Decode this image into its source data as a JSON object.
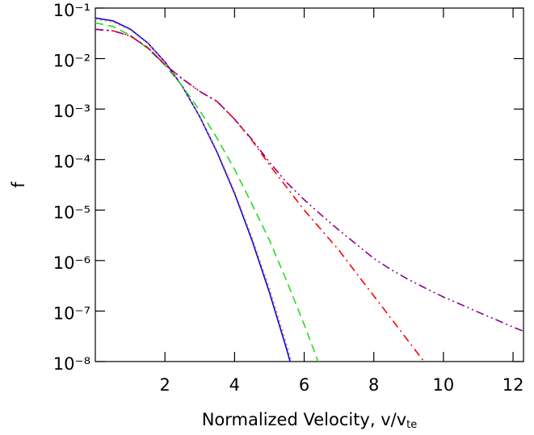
{
  "chart_data": {
    "type": "line",
    "ylabel": "f",
    "xlabel": "Normalized Velocity, v/v",
    "xlabel_sub": "te",
    "x": [
      0,
      0.5,
      1,
      1.5,
      2,
      2.5,
      3,
      3.5,
      4,
      4.5,
      5,
      5.5,
      6,
      6.5,
      7,
      7.5,
      8,
      8.5,
      9,
      9.5,
      10,
      10.5,
      11,
      11.5,
      12,
      12.3
    ],
    "series": [
      {
        "color": "#0000ff",
        "style": "solid",
        "values": [
          0.0635,
          0.056,
          0.0385,
          0.0206,
          0.0086,
          0.0028,
          0.000705,
          0.000138,
          2.13e-05,
          2.53e-06,
          2.36e-07,
          1.72e-08,
          9.7e-10,
          null,
          null,
          null,
          null,
          null,
          null,
          null,
          null,
          null,
          null,
          null,
          null,
          null
        ]
      },
      {
        "color": "#ff8c00",
        "style": "dotted",
        "values": [
          0.06,
          0.0532,
          0.0368,
          0.0199,
          0.00844,
          0.0028,
          0.000728,
          0.000148,
          2.36e-05,
          2.93e-06,
          2.87e-07,
          2.18e-08,
          1.3e-09,
          null,
          null,
          null,
          null,
          null,
          null,
          null,
          null,
          null,
          null,
          null,
          null,
          null
        ]
      },
      {
        "color": "#22dd22",
        "style": "dashed",
        "values": [
          0.051,
          0.0434,
          0.0291,
          0.016,
          0.00735,
          0.00284,
          0.000935,
          0.000263,
          6.4e-05,
          1.31e-05,
          2.54e-06,
          3.9e-07,
          5.4e-08,
          6.6e-09,
          null,
          null,
          null,
          null,
          null,
          null,
          null,
          null,
          null,
          null,
          null,
          null
        ]
      },
      {
        "color": "#ff0000",
        "style": "dashdot",
        "values": [
          0.038,
          0.0355,
          0.0282,
          0.0166,
          0.00759,
          0.00398,
          0.00224,
          0.00141,
          0.00063,
          0.00024,
          7.9e-05,
          2.8e-05,
          1e-05,
          4e-06,
          1.6e-06,
          5.6e-07,
          2e-07,
          7.1e-08,
          2.5e-08,
          8.9e-09,
          3.2e-09,
          null,
          null,
          null,
          null,
          null
        ]
      },
      {
        "color": "#8b008b",
        "style": "dashdotdot",
        "values": [
          0.038,
          0.0355,
          0.0282,
          0.0166,
          0.00759,
          0.00398,
          0.00224,
          0.00141,
          0.00063,
          0.00025,
          8.9e-05,
          3.5e-05,
          1.6e-05,
          7.9e-06,
          4e-06,
          2.1e-06,
          1.1e-06,
          6.6e-07,
          4.2e-07,
          2.8e-07,
          1.9e-07,
          1.35e-07,
          9.5e-08,
          6.8e-08,
          4.8e-08,
          4e-08
        ]
      }
    ],
    "xlim": [
      0,
      12.3
    ],
    "xticks": [
      2,
      4,
      6,
      8,
      10,
      12
    ],
    "ylim": [
      1e-08,
      0.1
    ],
    "ylog": true,
    "yticks": [
      {
        "value": 0.1,
        "label": "10⁻¹"
      },
      {
        "value": 0.01,
        "label": "10⁻²"
      },
      {
        "value": 0.001,
        "label": "10⁻³"
      },
      {
        "value": 0.0001,
        "label": "10⁻⁴"
      },
      {
        "value": 1e-05,
        "label": "10⁻⁵"
      },
      {
        "value": 1e-06,
        "label": "10⁻⁶"
      },
      {
        "value": 1e-07,
        "label": "10⁻⁷"
      },
      {
        "value": 1e-08,
        "label": "10⁻⁸"
      }
    ]
  }
}
